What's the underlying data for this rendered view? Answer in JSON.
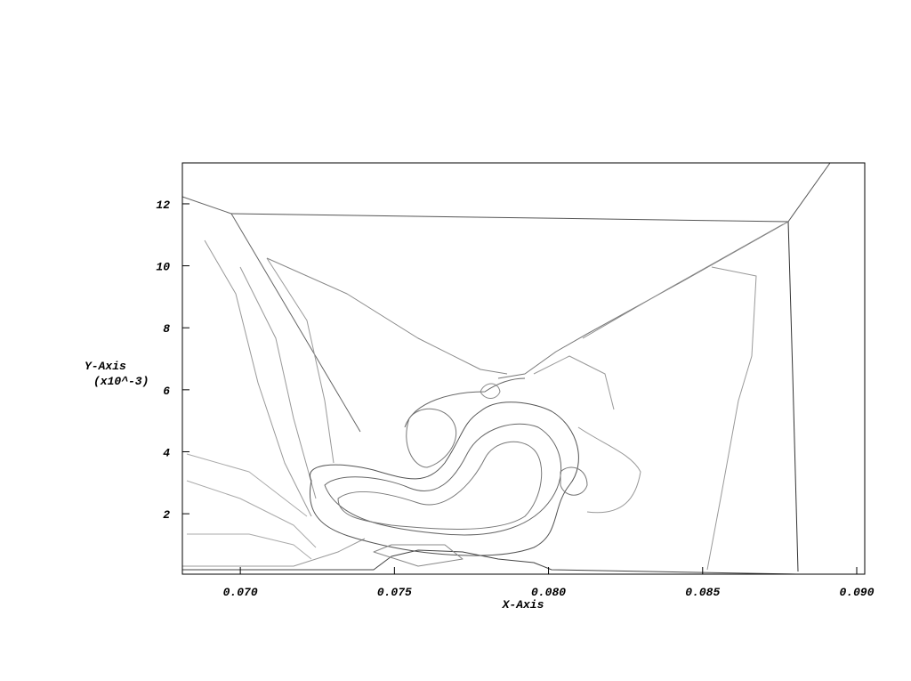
{
  "chart_data": {
    "type": "contour",
    "xlabel": "X-Axis",
    "ylabel": "Y-Axis",
    "ylabel_scale": "(x10^-3)",
    "xlim": [
      0.06812,
      0.09026
    ],
    "ylim": [
      0.05,
      13.32
    ],
    "xticks": [
      {
        "value": 0.07,
        "label": "0.070"
      },
      0.075,
      {
        "value": 0.08,
        "label": "0.080"
      },
      0.085,
      {
        "value": 0.09,
        "label": "0.090"
      }
    ],
    "yticks": [
      2,
      4,
      6,
      8,
      10,
      12
    ],
    "color": "#555555"
  }
}
